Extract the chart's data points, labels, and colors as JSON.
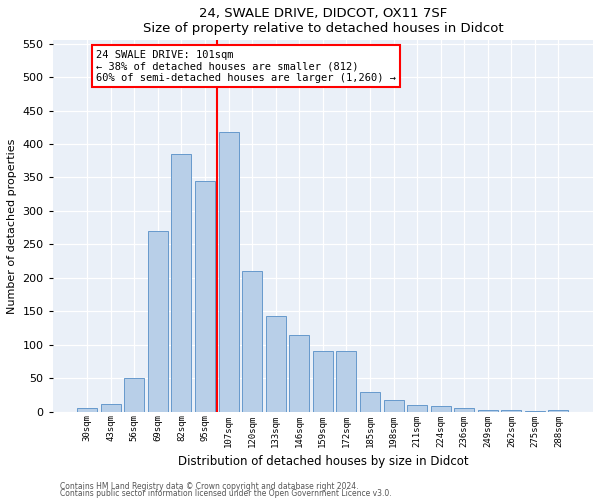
{
  "title1": "24, SWALE DRIVE, DIDCOT, OX11 7SF",
  "title2": "Size of property relative to detached houses in Didcot",
  "xlabel": "Distribution of detached houses by size in Didcot",
  "ylabel": "Number of detached properties",
  "categories": [
    "30sqm",
    "43sqm",
    "56sqm",
    "69sqm",
    "82sqm",
    "95sqm",
    "107sqm",
    "120sqm",
    "133sqm",
    "146sqm",
    "159sqm",
    "172sqm",
    "185sqm",
    "198sqm",
    "211sqm",
    "224sqm",
    "236sqm",
    "249sqm",
    "262sqm",
    "275sqm",
    "288sqm"
  ],
  "values": [
    5,
    12,
    50,
    270,
    385,
    345,
    418,
    210,
    143,
    115,
    90,
    90,
    30,
    18,
    10,
    8,
    5,
    3,
    2,
    1,
    2
  ],
  "bar_color": "#b8cfe8",
  "bar_edge_color": "#6699cc",
  "vline_color": "red",
  "annotation_text": "24 SWALE DRIVE: 101sqm\n← 38% of detached houses are smaller (812)\n60% of semi-detached houses are larger (1,260) →",
  "annotation_box_color": "white",
  "annotation_box_edge": "red",
  "ylim": [
    0,
    555
  ],
  "yticks": [
    0,
    50,
    100,
    150,
    200,
    250,
    300,
    350,
    400,
    450,
    500,
    550
  ],
  "footer1": "Contains HM Land Registry data © Crown copyright and database right 2024.",
  "footer2": "Contains public sector information licensed under the Open Government Licence v3.0.",
  "plot_bg_color": "#eaf0f8"
}
